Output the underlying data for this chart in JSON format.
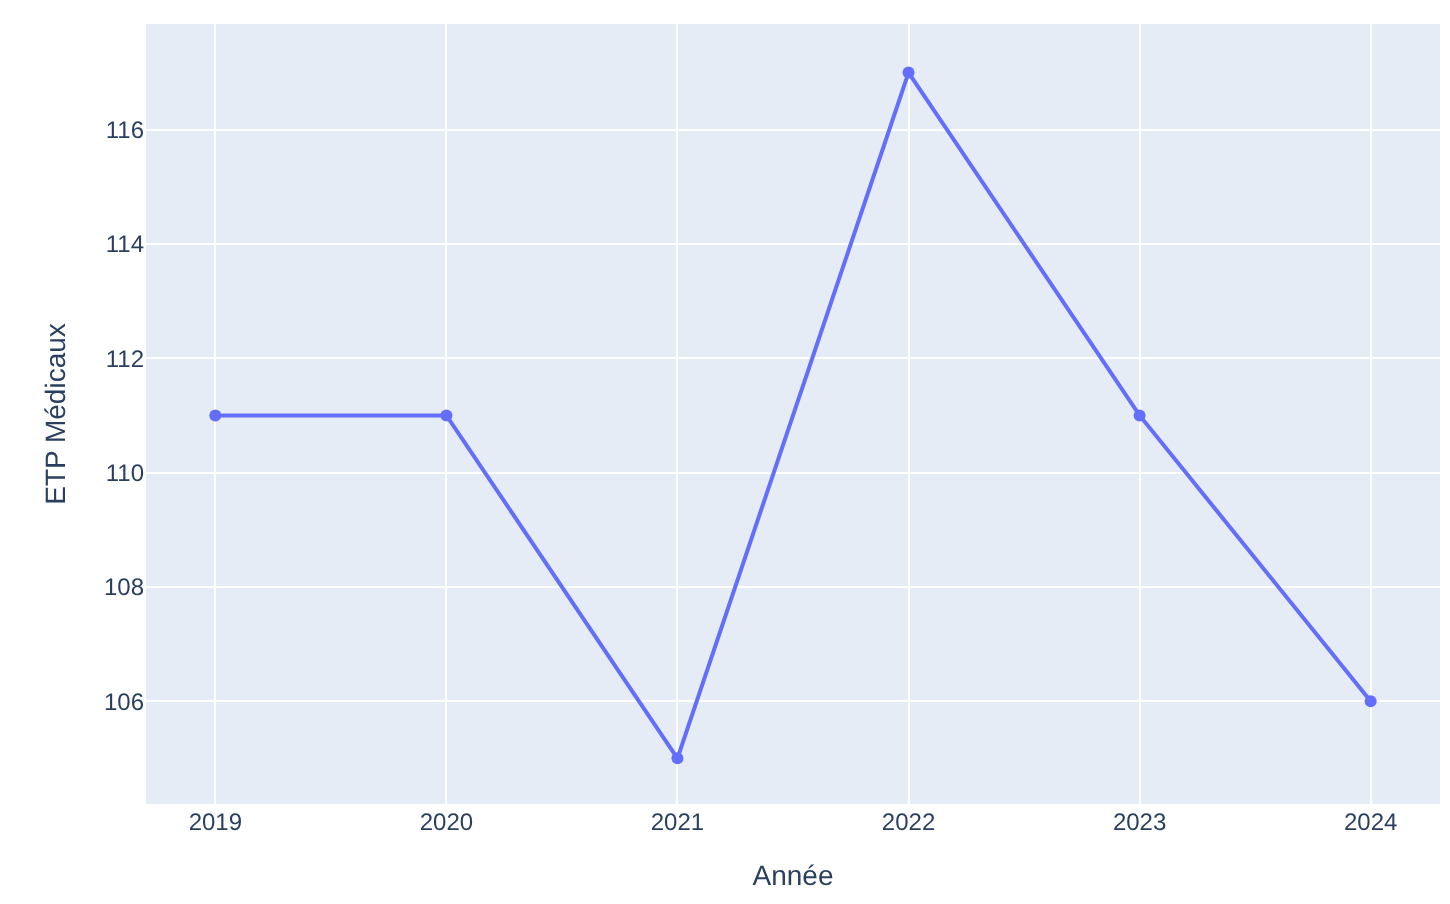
{
  "chart_data": {
    "type": "line",
    "xlabel": "Année",
    "ylabel": "ETP Médicaux",
    "x": [
      2019,
      2020,
      2021,
      2022,
      2023,
      2024
    ],
    "series": [
      {
        "color": "#636efa",
        "values": [
          111,
          111,
          105,
          117,
          111,
          106
        ]
      }
    ],
    "xlim": [
      2018.7,
      2024.3
    ],
    "xticks": [
      2019,
      2020,
      2021,
      2022,
      2023,
      2024
    ],
    "ylim": [
      104.2,
      117.85
    ],
    "yticks": [
      106,
      108,
      110,
      112,
      114,
      116
    ],
    "grid": true,
    "marker": "circle",
    "line_style": "solid",
    "legend": false
  }
}
